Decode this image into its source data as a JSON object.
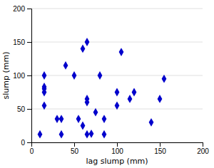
{
  "chart_data": {
    "type": "scatter",
    "x": [
      10,
      15,
      15,
      15,
      15,
      15,
      30,
      35,
      35,
      40,
      50,
      55,
      60,
      60,
      65,
      65,
      65,
      65,
      70,
      75,
      80,
      85,
      85,
      100,
      100,
      105,
      115,
      120,
      140,
      150,
      155
    ],
    "y": [
      12,
      55,
      75,
      80,
      83,
      100,
      35,
      35,
      12,
      115,
      100,
      35,
      140,
      25,
      150,
      60,
      65,
      12,
      13,
      45,
      100,
      35,
      12,
      55,
      75,
      135,
      65,
      75,
      30,
      65,
      95
    ],
    "xlabel": "lag slump (mm)",
    "ylabel": "slump (mm)",
    "xlim": [
      0,
      200
    ],
    "ylim": [
      0,
      200
    ],
    "xticks": [
      0,
      50,
      100,
      150,
      200
    ],
    "yticks": [
      0,
      50,
      100,
      150,
      200
    ],
    "color": "#0000CC",
    "marker": "diamond",
    "grid": "y"
  }
}
